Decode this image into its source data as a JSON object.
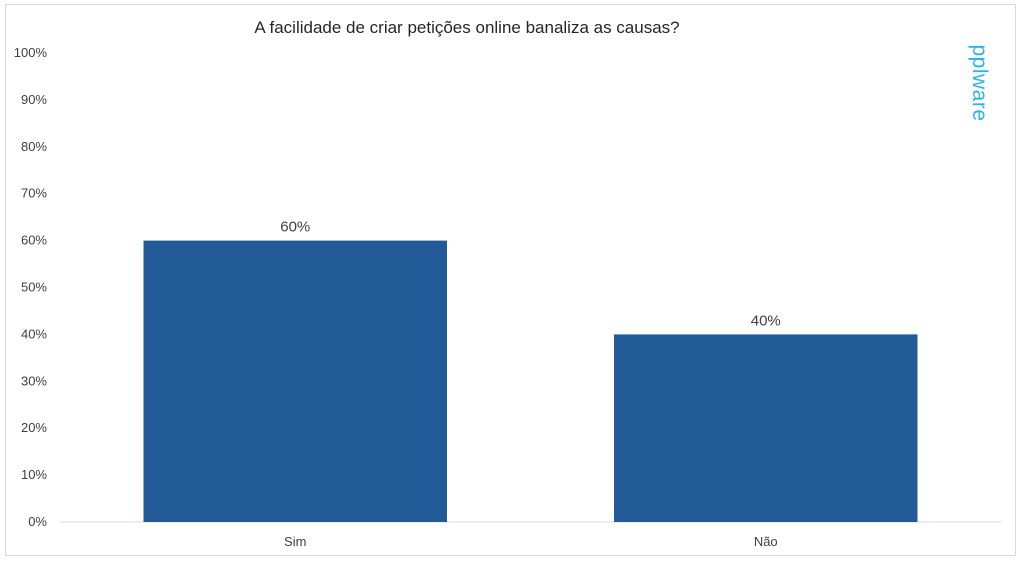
{
  "chart_data": {
    "type": "bar",
    "title": "A facilidade de criar petições online banaliza as causas?",
    "categories": [
      "Sim",
      "Não"
    ],
    "values": [
      60,
      40
    ],
    "data_labels": [
      "60%",
      "40%"
    ],
    "xlabel": "",
    "ylabel": "",
    "ylim": [
      0,
      100
    ],
    "y_ticks": [
      "0%",
      "10%",
      "20%",
      "30%",
      "40%",
      "50%",
      "60%",
      "70%",
      "80%",
      "90%",
      "100%"
    ],
    "grid": false,
    "legend": "none",
    "bar_color": "#215a96"
  },
  "watermark": {
    "text": "pplware",
    "color": "#2bb3e6"
  }
}
